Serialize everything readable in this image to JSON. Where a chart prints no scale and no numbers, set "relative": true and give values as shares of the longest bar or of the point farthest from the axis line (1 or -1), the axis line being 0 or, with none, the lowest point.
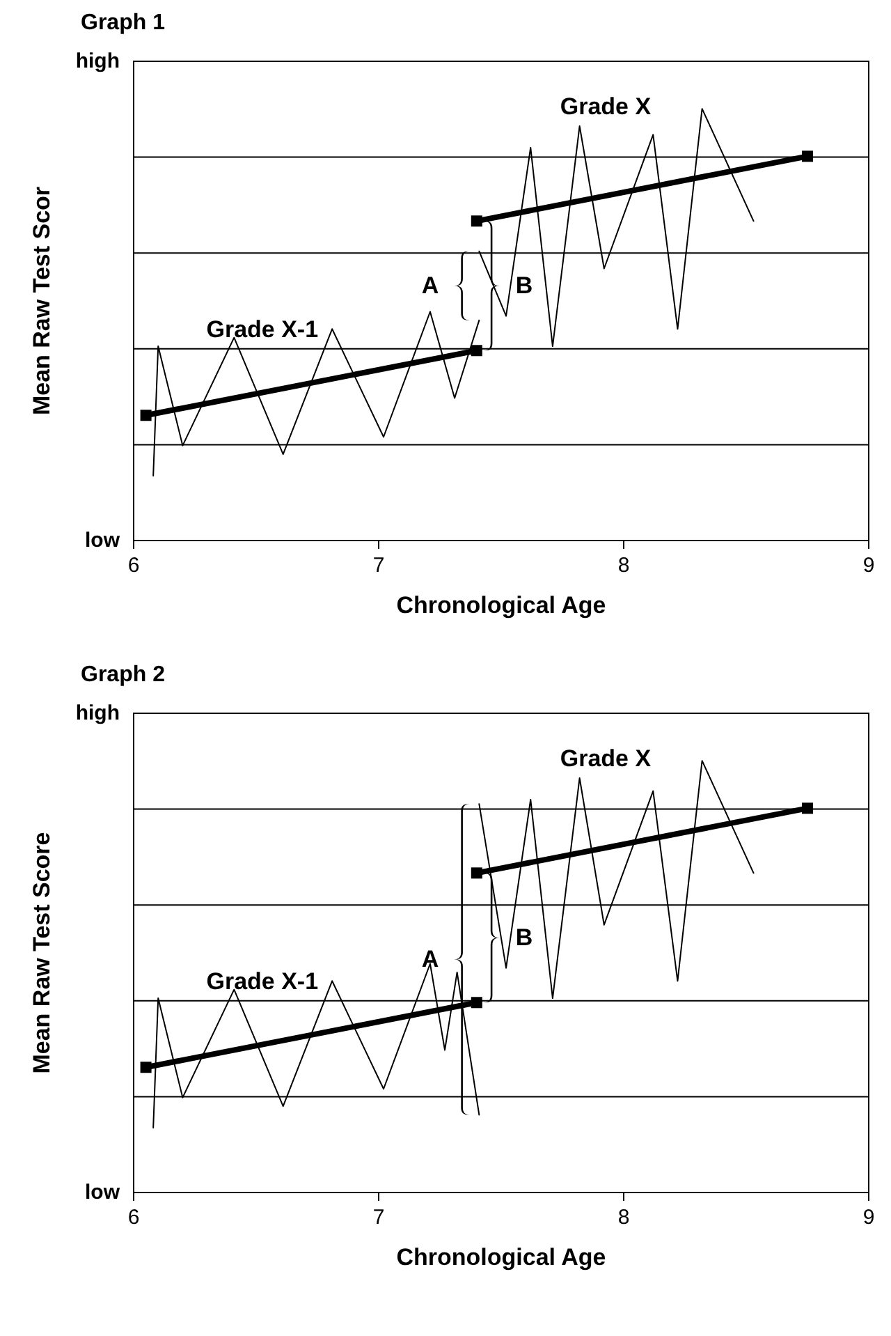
{
  "chart_data": [
    {
      "type": "line",
      "title": "Graph 1",
      "xlabel": "Chronological Age",
      "ylabel": "Mean Raw Test Scor",
      "xlim": [
        6,
        9
      ],
      "xticks": [
        6,
        7,
        8,
        9
      ],
      "relative": true,
      "grid": "y",
      "series": [
        {
          "color": "#000000",
          "marker": "none",
          "x": [
            6.08,
            6.1,
            6.2,
            6.41,
            6.61,
            6.81,
            7.02,
            7.21,
            7.31,
            7.41
          ],
          "values": [
            0.15,
            0.45,
            0.22,
            0.47,
            0.2,
            0.49,
            0.24,
            0.53,
            0.33,
            0.51
          ]
        },
        {
          "color": "#000000",
          "marker": "square",
          "x": [
            6.05,
            7.4
          ],
          "values": [
            0.29,
            0.44
          ]
        },
        {
          "color": "#000000",
          "marker": "none",
          "x": [
            7.41,
            7.52,
            7.62,
            7.71,
            7.82,
            7.92,
            8.12,
            8.22,
            8.32,
            8.53
          ],
          "values": [
            0.67,
            0.52,
            0.91,
            0.45,
            0.96,
            0.63,
            0.94,
            0.49,
            1,
            0.74
          ]
        },
        {
          "color": "#000000",
          "marker": "square",
          "x": [
            7.4,
            8.75
          ],
          "values": [
            0.74,
            0.89
          ]
        }
      ],
      "annotations": [
        "low",
        "high",
        "Grade X-1",
        "Grade X",
        "A",
        "B"
      ]
    },
    {
      "type": "line",
      "title": "Graph 2",
      "xlabel": "Chronological Age",
      "ylabel": "Mean Raw Test Score",
      "xlim": [
        6,
        9
      ],
      "xticks": [
        6,
        7,
        8,
        9
      ],
      "relative": true,
      "grid": "y",
      "series": [
        {
          "color": "#000000",
          "marker": "none",
          "x": [
            6.08,
            6.1,
            6.2,
            6.41,
            6.61,
            6.81,
            7.02,
            7.21,
            7.27,
            7.32,
            7.41
          ],
          "values": [
            0.15,
            0.45,
            0.22,
            0.47,
            0.2,
            0.49,
            0.24,
            0.53,
            0.33,
            0.51,
            0.18
          ]
        },
        {
          "color": "#000000",
          "marker": "square",
          "x": [
            6.05,
            7.4
          ],
          "values": [
            0.29,
            0.44
          ]
        },
        {
          "color": "#000000",
          "marker": "none",
          "x": [
            7.41,
            7.52,
            7.62,
            7.71,
            7.82,
            7.92,
            8.12,
            8.22,
            8.32,
            8.53
          ],
          "values": [
            0.9,
            0.52,
            0.91,
            0.45,
            0.96,
            0.62,
            0.93,
            0.49,
            1,
            0.74
          ]
        },
        {
          "color": "#000000",
          "marker": "square",
          "x": [
            7.4,
            8.75
          ],
          "values": [
            0.74,
            0.89
          ]
        }
      ],
      "annotations": [
        "low",
        "high",
        "Grade X-1",
        "Grade X",
        "A",
        "B"
      ]
    }
  ]
}
